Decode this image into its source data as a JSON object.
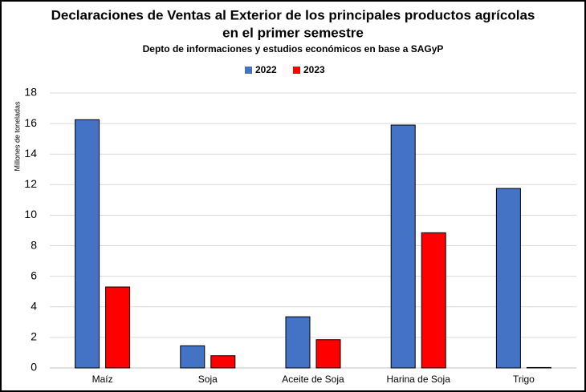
{
  "chart_data": {
    "type": "bar",
    "title": [
      "Declaraciones de Ventas al Exterior de los principales productos agrícolas",
      "en el primer semestre"
    ],
    "subtitle": "Depto de informaciones y estudios económicos en base a SAGyP",
    "y_label": "Millones de toneladas",
    "categories": [
      "Maíz",
      "Soja",
      "Aceite de Soja",
      "Harina de Soja",
      "Trigo"
    ],
    "series": [
      {
        "name": "2022",
        "color": "#4472c4",
        "values": [
          16.25,
          1.45,
          3.35,
          15.9,
          11.75
        ]
      },
      {
        "name": "2023",
        "color": "#ff0000",
        "values": [
          5.3,
          0.8,
          1.85,
          8.85,
          0.03
        ]
      }
    ],
    "ylim": [
      0,
      18
    ],
    "yticks": [
      0,
      2,
      4,
      6,
      8,
      10,
      12,
      14,
      16,
      18
    ],
    "grid": true,
    "legend": "top"
  }
}
